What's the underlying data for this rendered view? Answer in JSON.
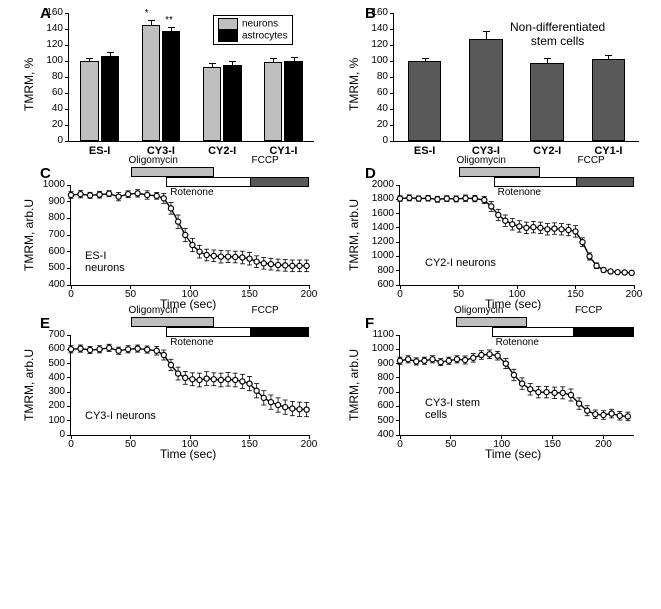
{
  "panelA": {
    "label": "A",
    "ylabel": "TMRM, %",
    "ylim": [
      0,
      160
    ],
    "ytick_step": 20,
    "categories": [
      "ES-I",
      "CY3-I",
      "CY2-I",
      "CY1-I"
    ],
    "series": [
      {
        "name": "neurons",
        "color": "#bfbfbf",
        "values": [
          100,
          145,
          92,
          99
        ],
        "err": [
          4,
          6,
          6,
          5
        ]
      },
      {
        "name": "astrocytes",
        "color": "#000000",
        "values": [
          106,
          138,
          95,
          100
        ],
        "err": [
          5,
          4,
          5,
          5
        ]
      }
    ],
    "legend": [
      "neurons",
      "astrocytes"
    ],
    "legend_colors": [
      "#bfbfbf",
      "#000000"
    ],
    "sig": [
      "*",
      "**"
    ]
  },
  "panelB": {
    "label": "B",
    "ylabel": "TMRM, %",
    "ylim": [
      0,
      160
    ],
    "ytick_step": 20,
    "categories": [
      "ES-I",
      "CY3-I",
      "CY2-I",
      "CY1-I"
    ],
    "series": [
      {
        "name": "stem",
        "color": "#595959",
        "values": [
          100,
          128,
          97,
          102
        ],
        "err": [
          4,
          10,
          7,
          6
        ]
      }
    ],
    "note": "Non-differentiated\nstem cells"
  },
  "timeseries_common": {
    "xlabel": "Time (sec)",
    "xlim": [
      0,
      200
    ],
    "xtick_step": 50,
    "treatments": [
      {
        "name": "Oligomycin",
        "color": "#bfbfbf",
        "start": 50,
        "end": 120
      },
      {
        "name": "Rotenone",
        "color": "#ffffff",
        "start": 80,
        "end": 180
      },
      {
        "name": "FCCP",
        "color": "#000000",
        "start": 150,
        "end": 200
      }
    ]
  },
  "panelC": {
    "label": "C",
    "ylabel": "TMRM, arb.U",
    "inset": "ES-I\nneurons",
    "ylim": [
      400,
      1000
    ],
    "ytick_step": 100,
    "treatment_colors": {
      "Oligomycin": "#bfbfbf",
      "Rotenone": "#ffffff",
      "FCCP": "#595959"
    },
    "data": [
      [
        0,
        940,
        20
      ],
      [
        8,
        945,
        22
      ],
      [
        16,
        938,
        18
      ],
      [
        24,
        942,
        20
      ],
      [
        32,
        948,
        18
      ],
      [
        40,
        930,
        25
      ],
      [
        48,
        945,
        20
      ],
      [
        56,
        950,
        22
      ],
      [
        64,
        940,
        25
      ],
      [
        72,
        935,
        20
      ],
      [
        78,
        920,
        30
      ],
      [
        84,
        860,
        35
      ],
      [
        90,
        780,
        40
      ],
      [
        96,
        700,
        40
      ],
      [
        102,
        640,
        40
      ],
      [
        108,
        600,
        38
      ],
      [
        114,
        580,
        35
      ],
      [
        120,
        575,
        35
      ],
      [
        126,
        570,
        38
      ],
      [
        132,
        570,
        35
      ],
      [
        138,
        568,
        35
      ],
      [
        144,
        565,
        38
      ],
      [
        150,
        558,
        38
      ],
      [
        156,
        540,
        35
      ],
      [
        162,
        530,
        35
      ],
      [
        168,
        525,
        35
      ],
      [
        174,
        520,
        35
      ],
      [
        180,
        518,
        35
      ],
      [
        186,
        515,
        35
      ],
      [
        192,
        515,
        35
      ],
      [
        198,
        515,
        35
      ]
    ]
  },
  "panelD": {
    "label": "D",
    "ylabel": "TMRM, arb.U",
    "inset": "CY2-I neurons",
    "ylim": [
      600,
      2000
    ],
    "ytick_step": 200,
    "treatment_colors": {
      "Oligomycin": "#bfbfbf",
      "Rotenone": "#ffffff",
      "FCCP": "#595959"
    },
    "data": [
      [
        0,
        1810,
        40
      ],
      [
        8,
        1820,
        42
      ],
      [
        16,
        1810,
        38
      ],
      [
        24,
        1815,
        40
      ],
      [
        32,
        1800,
        42
      ],
      [
        40,
        1810,
        40
      ],
      [
        48,
        1805,
        42
      ],
      [
        56,
        1815,
        45
      ],
      [
        64,
        1810,
        45
      ],
      [
        72,
        1790,
        50
      ],
      [
        78,
        1700,
        70
      ],
      [
        84,
        1580,
        80
      ],
      [
        90,
        1500,
        80
      ],
      [
        96,
        1450,
        80
      ],
      [
        102,
        1420,
        80
      ],
      [
        108,
        1400,
        80
      ],
      [
        114,
        1410,
        80
      ],
      [
        120,
        1400,
        80
      ],
      [
        126,
        1380,
        80
      ],
      [
        132,
        1390,
        80
      ],
      [
        138,
        1380,
        80
      ],
      [
        144,
        1370,
        80
      ],
      [
        150,
        1350,
        80
      ],
      [
        156,
        1200,
        60
      ],
      [
        162,
        1000,
        50
      ],
      [
        168,
        870,
        40
      ],
      [
        174,
        810,
        30
      ],
      [
        180,
        790,
        25
      ],
      [
        186,
        780,
        25
      ],
      [
        192,
        775,
        25
      ],
      [
        198,
        770,
        25
      ]
    ]
  },
  "panelE": {
    "label": "E",
    "ylabel": "TMRM, arb.U",
    "inset": "CY3-I neurons",
    "ylim": [
      0,
      700
    ],
    "ytick_step": 100,
    "treatment_colors": {
      "Oligomycin": "#bfbfbf",
      "Rotenone": "#ffffff",
      "FCCP": "#000000"
    },
    "data": [
      [
        0,
        600,
        25
      ],
      [
        8,
        605,
        25
      ],
      [
        16,
        595,
        25
      ],
      [
        24,
        600,
        25
      ],
      [
        32,
        610,
        25
      ],
      [
        40,
        590,
        25
      ],
      [
        48,
        600,
        25
      ],
      [
        56,
        605,
        25
      ],
      [
        64,
        598,
        25
      ],
      [
        72,
        590,
        30
      ],
      [
        78,
        560,
        35
      ],
      [
        84,
        490,
        40
      ],
      [
        90,
        430,
        45
      ],
      [
        96,
        400,
        45
      ],
      [
        102,
        390,
        45
      ],
      [
        108,
        385,
        48
      ],
      [
        114,
        395,
        48
      ],
      [
        120,
        390,
        45
      ],
      [
        126,
        385,
        48
      ],
      [
        132,
        390,
        48
      ],
      [
        138,
        385,
        48
      ],
      [
        144,
        375,
        50
      ],
      [
        150,
        360,
        50
      ],
      [
        156,
        310,
        50
      ],
      [
        162,
        260,
        50
      ],
      [
        168,
        230,
        50
      ],
      [
        174,
        210,
        50
      ],
      [
        180,
        195,
        50
      ],
      [
        186,
        185,
        50
      ],
      [
        192,
        180,
        50
      ],
      [
        198,
        178,
        50
      ]
    ]
  },
  "panelF": {
    "label": "F",
    "ylabel": "TMRM, arb.U",
    "inset": "CY3-I stem\ncells",
    "ylim": [
      400,
      1100
    ],
    "ytick_step": 100,
    "treatment_colors": {
      "Oligomycin": "#bfbfbf",
      "Rotenone": "#ffffff",
      "FCCP": "#000000"
    },
    "treatments_override": [
      {
        "name": "Oligomycin",
        "color": "#bfbfbf",
        "start": 55,
        "end": 125
      },
      {
        "name": "Rotenone",
        "color": "#ffffff",
        "start": 90,
        "end": 195
      },
      {
        "name": "FCCP",
        "color": "#000000",
        "start": 170,
        "end": 230
      }
    ],
    "xlim": [
      0,
      230
    ],
    "xtick_step": 50,
    "data": [
      [
        0,
        920,
        25
      ],
      [
        8,
        930,
        25
      ],
      [
        16,
        915,
        25
      ],
      [
        24,
        920,
        25
      ],
      [
        32,
        930,
        25
      ],
      [
        40,
        910,
        25
      ],
      [
        48,
        920,
        25
      ],
      [
        56,
        930,
        25
      ],
      [
        64,
        925,
        28
      ],
      [
        72,
        940,
        30
      ],
      [
        80,
        960,
        30
      ],
      [
        88,
        965,
        30
      ],
      [
        96,
        955,
        30
      ],
      [
        104,
        900,
        35
      ],
      [
        112,
        820,
        40
      ],
      [
        120,
        760,
        40
      ],
      [
        128,
        720,
        40
      ],
      [
        136,
        700,
        40
      ],
      [
        144,
        700,
        40
      ],
      [
        152,
        695,
        40
      ],
      [
        160,
        695,
        42
      ],
      [
        168,
        680,
        42
      ],
      [
        176,
        620,
        40
      ],
      [
        184,
        570,
        35
      ],
      [
        192,
        545,
        30
      ],
      [
        200,
        540,
        30
      ],
      [
        208,
        550,
        30
      ],
      [
        216,
        535,
        30
      ],
      [
        224,
        530,
        30
      ]
    ]
  }
}
